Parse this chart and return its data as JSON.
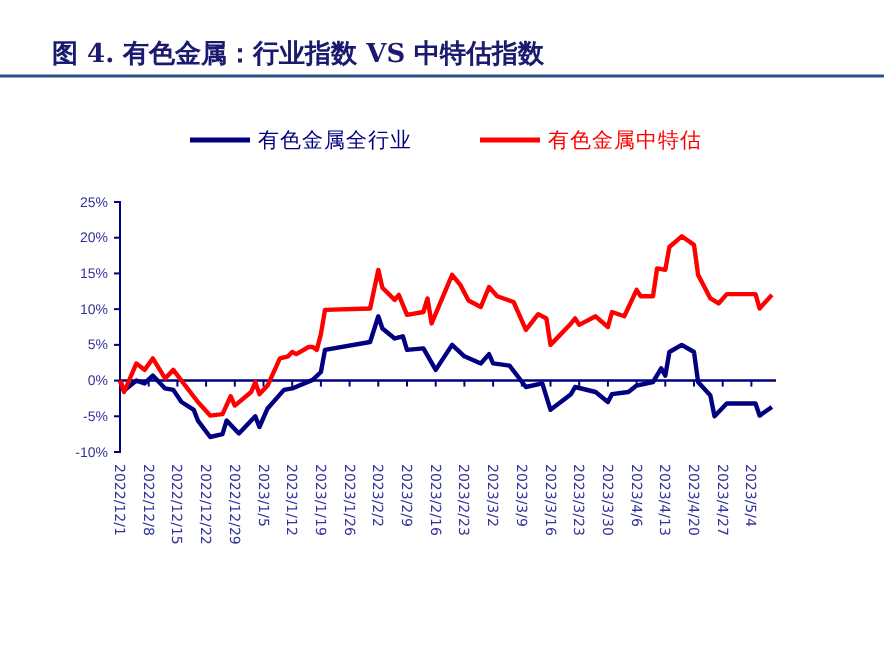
{
  "chart_data": {
    "type": "line",
    "title": "图 4. 有色金属：行业指数 VS 中特估指数",
    "legend": "top",
    "grid": false,
    "marker": "none",
    "line_style": "solid",
    "xlim": [
      "2022-12-01",
      "2023-05-10"
    ],
    "xticks": [
      {
        "value": "2022-12-01",
        "label": "2022/12/1"
      },
      {
        "value": "2022-12-08",
        "label": "2022/12/8"
      },
      {
        "value": "2022-12-15",
        "label": "2022/12/15"
      },
      {
        "value": "2022-12-22",
        "label": "2022/12/22"
      },
      {
        "value": "2022-12-29",
        "label": "2022/12/29"
      },
      {
        "value": "2023-01-05",
        "label": "2023/1/5"
      },
      {
        "value": "2023-01-12",
        "label": "2023/1/12"
      },
      {
        "value": "2023-01-19",
        "label": "2023/1/19"
      },
      {
        "value": "2023-01-26",
        "label": "2023/1/26"
      },
      {
        "value": "2023-02-02",
        "label": "2023/2/2"
      },
      {
        "value": "2023-02-09",
        "label": "2023/2/9"
      },
      {
        "value": "2023-02-16",
        "label": "2023/2/16"
      },
      {
        "value": "2023-02-23",
        "label": "2023/2/23"
      },
      {
        "value": "2023-03-02",
        "label": "2023/3/2"
      },
      {
        "value": "2023-03-09",
        "label": "2023/3/9"
      },
      {
        "value": "2023-03-16",
        "label": "2023/3/16"
      },
      {
        "value": "2023-03-23",
        "label": "2023/3/23"
      },
      {
        "value": "2023-03-30",
        "label": "2023/3/30"
      },
      {
        "value": "2023-04-06",
        "label": "2023/4/6"
      },
      {
        "value": "2023-04-13",
        "label": "2023/4/13"
      },
      {
        "value": "2023-04-20",
        "label": "2023/4/20"
      },
      {
        "value": "2023-04-27",
        "label": "2023/4/27"
      },
      {
        "value": "2023-05-04",
        "label": "2023/5/4"
      }
    ],
    "ylim": [
      -10,
      25
    ],
    "ref_lines": [
      {
        "axis": "y",
        "value": 0,
        "color": "#000080"
      }
    ],
    "yticks": [
      {
        "value": -10,
        "label": "-10%"
      },
      {
        "value": -5,
        "label": "-5%"
      },
      {
        "value": 0,
        "label": "0%"
      },
      {
        "value": 5,
        "label": "5%"
      },
      {
        "value": 10,
        "label": "10%"
      },
      {
        "value": 15,
        "label": "15%"
      },
      {
        "value": 20,
        "label": "20%"
      },
      {
        "value": 25,
        "label": "25%"
      }
    ],
    "series": [
      {
        "name": "有色金属全行业",
        "color": "#000080",
        "x": [
          "2022-12-01",
          "2022-12-02",
          "2022-12-05",
          "2022-12-07",
          "2022-12-09",
          "2022-12-12",
          "2022-12-14",
          "2022-12-16",
          "2022-12-19",
          "2022-12-20",
          "2022-12-23",
          "2022-12-26",
          "2022-12-27",
          "2022-12-30",
          "2023-01-03",
          "2023-01-04",
          "2023-01-06",
          "2023-01-10",
          "2023-01-12",
          "2023-01-17",
          "2023-01-19",
          "2023-01-20",
          "2023-01-31",
          "2023-02-02",
          "2023-02-03",
          "2023-02-06",
          "2023-02-08",
          "2023-02-09",
          "2023-02-13",
          "2023-02-16",
          "2023-02-20",
          "2023-02-23",
          "2023-02-27",
          "2023-03-01",
          "2023-03-02",
          "2023-03-06",
          "2023-03-10",
          "2023-03-14",
          "2023-03-16",
          "2023-03-21",
          "2023-03-22",
          "2023-03-27",
          "2023-03-30",
          "2023-03-31",
          "2023-04-04",
          "2023-04-06",
          "2023-04-10",
          "2023-04-12",
          "2023-04-13",
          "2023-04-14",
          "2023-04-17",
          "2023-04-20",
          "2023-04-21",
          "2023-04-24",
          "2023-04-25",
          "2023-04-28",
          "2023-05-05",
          "2023-05-06",
          "2023-05-09"
        ],
        "values": [
          0,
          -1.4,
          0,
          -0.4,
          0.7,
          -1.1,
          -1.3,
          -3,
          -4.1,
          -5.6,
          -7.9,
          -7.5,
          -5.6,
          -7.4,
          -5,
          -6.5,
          -3.9,
          -1.3,
          -1.1,
          0.1,
          1.2,
          4.3,
          5.4,
          9,
          7.3,
          5.9,
          6.2,
          4.3,
          4.5,
          1.5,
          5,
          3.4,
          2.4,
          3.7,
          2.4,
          2.1,
          -0.9,
          -0.4,
          -4.1,
          -1.9,
          -0.9,
          -1.6,
          -3,
          -1.9,
          -1.6,
          -0.7,
          -0.2,
          1.7,
          0.7,
          4,
          5,
          4,
          -0.2,
          -2.1,
          -5,
          -3.2,
          -3.2,
          -4.9,
          -3.7
        ]
      },
      {
        "name": "有色金属中特估",
        "color": "#ff0000",
        "x": [
          "2022-12-01",
          "2022-12-02",
          "2022-12-05",
          "2022-12-07",
          "2022-12-09",
          "2022-12-12",
          "2022-12-14",
          "2022-12-16",
          "2022-12-20",
          "2022-12-23",
          "2022-12-26",
          "2022-12-28",
          "2022-12-29",
          "2023-01-02",
          "2023-01-03",
          "2023-01-04",
          "2023-01-06",
          "2023-01-09",
          "2023-01-11",
          "2023-01-12",
          "2023-01-13",
          "2023-01-16",
          "2023-01-17",
          "2023-01-18",
          "2023-01-19",
          "2023-01-20",
          "2023-01-31",
          "2023-02-02",
          "2023-02-03",
          "2023-02-06",
          "2023-02-07",
          "2023-02-08",
          "2023-02-09",
          "2023-02-13",
          "2023-02-14",
          "2023-02-15",
          "2023-02-20",
          "2023-02-22",
          "2023-02-24",
          "2023-02-27",
          "2023-03-01",
          "2023-03-03",
          "2023-03-07",
          "2023-03-10",
          "2023-03-13",
          "2023-03-15",
          "2023-03-16",
          "2023-03-21",
          "2023-03-22",
          "2023-03-23",
          "2023-03-27",
          "2023-03-30",
          "2023-03-31",
          "2023-04-03",
          "2023-04-06",
          "2023-04-07",
          "2023-04-10",
          "2023-04-11",
          "2023-04-13",
          "2023-04-14",
          "2023-04-17",
          "2023-04-20",
          "2023-04-21",
          "2023-04-24",
          "2023-04-26",
          "2023-04-28",
          "2023-05-05",
          "2023-05-06",
          "2023-05-09"
        ],
        "values": [
          0,
          -1.6,
          2.4,
          1.5,
          3.1,
          0.3,
          1.5,
          0,
          -3,
          -4.9,
          -4.7,
          -2.2,
          -3.5,
          -1.6,
          -0.2,
          -1.9,
          -0.7,
          3.1,
          3.4,
          4,
          3.7,
          4.7,
          4.7,
          4.3,
          6.5,
          9.9,
          10.1,
          15.5,
          13,
          11.3,
          12,
          10.6,
          9.2,
          9.6,
          11.5,
          8,
          14.8,
          13.4,
          11.2,
          10.3,
          13.1,
          11.8,
          11,
          7.1,
          9.3,
          8.7,
          5,
          8,
          8.7,
          7.8,
          9,
          7.5,
          9.6,
          9,
          12.7,
          11.8,
          11.8,
          15.7,
          15.5,
          18.7,
          20.2,
          19,
          14.8,
          11.5,
          10.8,
          12.1,
          12.1,
          10.1,
          12
        ]
      }
    ]
  }
}
